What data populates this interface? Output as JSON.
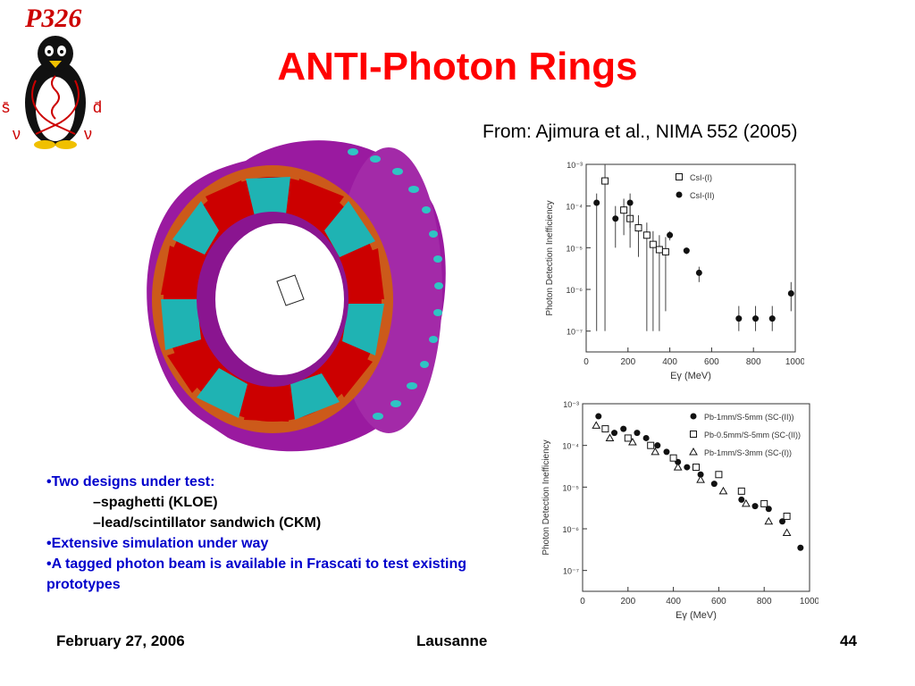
{
  "logo": {
    "text": "P326",
    "label_sbar": "s̄",
    "label_dbar": "d̄",
    "label_nu_left": "ν",
    "label_nu_right": "ν"
  },
  "title": "ANTI-Photon Rings",
  "subtitle": "From: Ajimura et al., NIMA 552 (2005)",
  "bullets": [
    {
      "level": 1,
      "text": "•Two designs under test:"
    },
    {
      "level": 2,
      "text": "–spaghetti (KLOE)"
    },
    {
      "level": 2,
      "text": "–lead/scintillator sandwich (CKM)"
    },
    {
      "level": 1,
      "text": "•Extensive simulation under way"
    },
    {
      "level": 1,
      "text": "•A tagged photon beam is available in Frascati to test existing prototypes"
    }
  ],
  "footer": {
    "date": "February 27, 2006",
    "location": "Lausanne",
    "page": "44"
  },
  "colors": {
    "title": "#ff0000",
    "bullet_main": "#0000cc",
    "ring_outer": "#9a1aa0",
    "ring_cyan": "#1fb3b3",
    "ring_red": "#cc0000"
  },
  "chart_data": [
    {
      "type": "scatter",
      "xlabel": "Eγ (MeV)",
      "ylabel": "Photon Detection Inefficiency",
      "xlim": [
        0,
        1000
      ],
      "ylim_log10": [
        -7.5,
        -3
      ],
      "x_ticks": [
        0,
        200,
        400,
        600,
        800,
        1000
      ],
      "y_ticks": [
        -3,
        -4,
        -5,
        -6,
        -7
      ],
      "y_tick_labels": [
        "10⁻³",
        "10⁻⁴",
        "10⁻⁵",
        "10⁻⁶",
        "10⁻⁷"
      ],
      "legend_position": "top-right",
      "series": [
        {
          "name": "CsI-(I)",
          "marker": "open-square",
          "points": [
            {
              "x": 90,
              "y": 0.0004,
              "lo": 1e-07,
              "hi": 0.001
            },
            {
              "x": 180,
              "y": 8e-05,
              "lo": 2e-05,
              "hi": 0.00015
            },
            {
              "x": 210,
              "y": 5e-05,
              "lo": 1e-05,
              "hi": 0.0001
            },
            {
              "x": 250,
              "y": 3e-05,
              "lo": 6e-06,
              "hi": 6e-05
            },
            {
              "x": 290,
              "y": 2e-05,
              "lo": 1e-07,
              "hi": 4e-05
            },
            {
              "x": 320,
              "y": 1.2e-05,
              "lo": 1e-07,
              "hi": 2.5e-05
            },
            {
              "x": 350,
              "y": 9e-06,
              "lo": 1e-07,
              "hi": 2e-05
            },
            {
              "x": 380,
              "y": 8e-06,
              "lo": 3e-07,
              "hi": 1.8e-05
            }
          ]
        },
        {
          "name": "CsI-(II)",
          "marker": "filled-circle",
          "points": [
            {
              "x": 50,
              "y": 0.00012,
              "lo": 1e-07,
              "hi": 0.0002
            },
            {
              "x": 140,
              "y": 5e-05,
              "lo": 1e-05,
              "hi": 0.0001
            },
            {
              "x": 210,
              "y": 0.00012,
              "lo": 3e-05,
              "hi": 0.0002
            },
            {
              "x": 400,
              "y": 2e-05,
              "lo": 1.5e-05,
              "hi": 2.5e-05
            },
            {
              "x": 480,
              "y": 8.5e-06,
              "lo": 7e-06,
              "hi": 1e-05
            },
            {
              "x": 540,
              "y": 2.5e-06,
              "lo": 1.5e-06,
              "hi": 3.5e-06
            },
            {
              "x": 730,
              "y": 2e-07,
              "lo": 1e-07,
              "hi": 4e-07
            },
            {
              "x": 810,
              "y": 2e-07,
              "lo": 1e-07,
              "hi": 4e-07
            },
            {
              "x": 890,
              "y": 2e-07,
              "lo": 1e-07,
              "hi": 4e-07
            },
            {
              "x": 980,
              "y": 8e-07,
              "lo": 3e-07,
              "hi": 1.5e-06
            }
          ]
        }
      ]
    },
    {
      "type": "scatter",
      "xlabel": "Eγ (MeV)",
      "ylabel": "Photon Detection Inefficiency",
      "xlim": [
        0,
        1000
      ],
      "ylim_log10": [
        -7.5,
        -3
      ],
      "x_ticks": [
        0,
        200,
        400,
        600,
        800,
        1000
      ],
      "y_ticks": [
        -3,
        -4,
        -5,
        -6,
        -7
      ],
      "y_tick_labels": [
        "10⁻³",
        "10⁻⁴",
        "10⁻⁵",
        "10⁻⁶",
        "10⁻⁷"
      ],
      "legend_position": "top-right",
      "series": [
        {
          "name": "Pb-1mm/S-5mm (SC-(II))",
          "marker": "filled-circle",
          "points": [
            {
              "x": 70,
              "y": 0.0005
            },
            {
              "x": 140,
              "y": 0.0002
            },
            {
              "x": 180,
              "y": 0.00025
            },
            {
              "x": 240,
              "y": 0.0002
            },
            {
              "x": 280,
              "y": 0.00015
            },
            {
              "x": 330,
              "y": 0.0001
            },
            {
              "x": 370,
              "y": 7e-05
            },
            {
              "x": 420,
              "y": 4e-05
            },
            {
              "x": 460,
              "y": 3e-05
            },
            {
              "x": 520,
              "y": 2e-05
            },
            {
              "x": 580,
              "y": 1.2e-05
            },
            {
              "x": 700,
              "y": 5e-06
            },
            {
              "x": 760,
              "y": 3.5e-06
            },
            {
              "x": 820,
              "y": 3e-06
            },
            {
              "x": 880,
              "y": 1.5e-06
            },
            {
              "x": 960,
              "y": 3.5e-07
            }
          ]
        },
        {
          "name": "Pb-0.5mm/S-5mm (SC-(II))",
          "marker": "open-square",
          "points": [
            {
              "x": 100,
              "y": 0.00025
            },
            {
              "x": 200,
              "y": 0.00015
            },
            {
              "x": 300,
              "y": 0.0001
            },
            {
              "x": 400,
              "y": 5e-05
            },
            {
              "x": 500,
              "y": 3e-05
            },
            {
              "x": 600,
              "y": 2e-05
            },
            {
              "x": 700,
              "y": 8e-06
            },
            {
              "x": 800,
              "y": 4e-06
            },
            {
              "x": 900,
              "y": 2e-06
            }
          ]
        },
        {
          "name": "Pb-1mm/S-3mm (SC-(I))",
          "marker": "open-triangle",
          "points": [
            {
              "x": 60,
              "y": 0.0003
            },
            {
              "x": 120,
              "y": 0.00015
            },
            {
              "x": 220,
              "y": 0.00012
            },
            {
              "x": 320,
              "y": 7e-05
            },
            {
              "x": 420,
              "y": 3e-05
            },
            {
              "x": 520,
              "y": 1.5e-05
            },
            {
              "x": 620,
              "y": 8e-06
            },
            {
              "x": 720,
              "y": 4e-06
            },
            {
              "x": 820,
              "y": 1.5e-06
            },
            {
              "x": 900,
              "y": 8e-07
            }
          ]
        }
      ]
    }
  ]
}
